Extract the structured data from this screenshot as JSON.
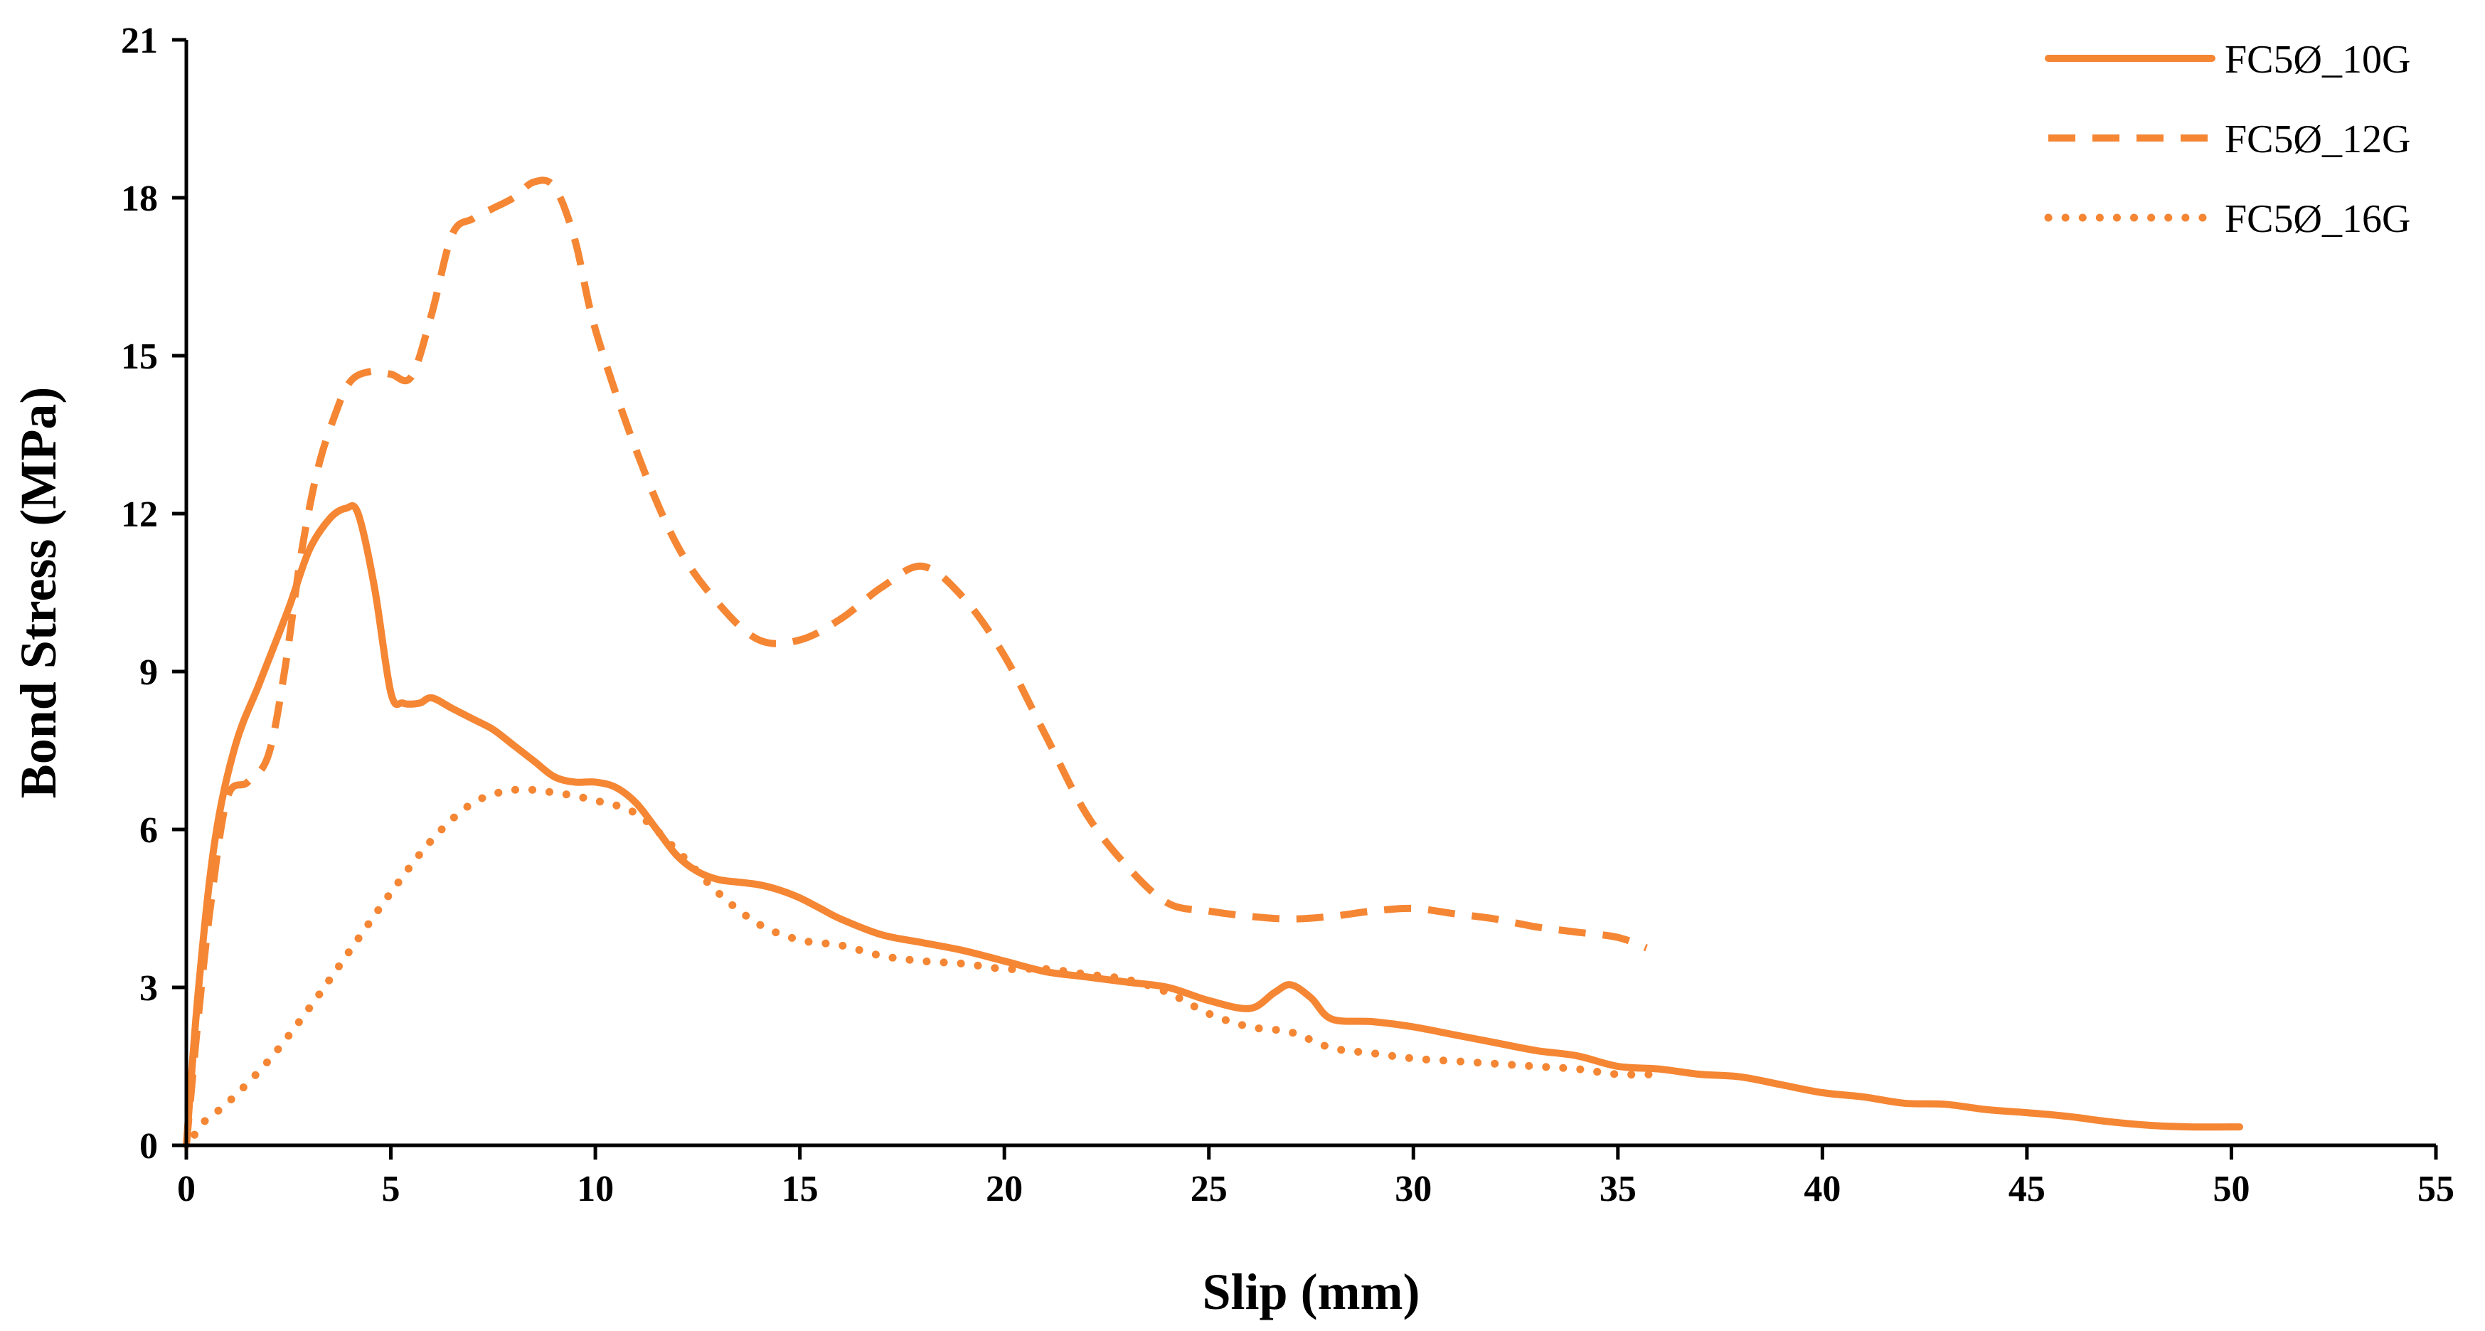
{
  "chart_data": {
    "type": "line",
    "title": "",
    "xlabel": "Slip (mm)",
    "ylabel": "Bond Stress (MPa)",
    "xlim": [
      0,
      55
    ],
    "ylim": [
      0,
      21
    ],
    "xticks": [
      0,
      5,
      10,
      15,
      20,
      25,
      30,
      35,
      40,
      45,
      50,
      55
    ],
    "yticks": [
      0,
      3,
      6,
      9,
      12,
      15,
      18,
      21
    ],
    "grid": false,
    "legend_position": "top-right",
    "series_color": "#F58634",
    "series": [
      {
        "name": "FC5Ø_10G",
        "style": "solid",
        "x": [
          0,
          0.3,
          0.7,
          1.2,
          1.8,
          2.5,
          3.0,
          3.5,
          3.9,
          4.2,
          4.6,
          5.0,
          5.3,
          5.7,
          6.0,
          6.5,
          7.0,
          7.5,
          8.0,
          8.5,
          9.0,
          9.5,
          10.0,
          10.5,
          11.0,
          11.5,
          12.0,
          12.5,
          13.0,
          13.5,
          14.0,
          14.5,
          15.0,
          15.5,
          16.0,
          17.0,
          18.0,
          19.0,
          20.0,
          21.0,
          22.0,
          23.0,
          24.0,
          25.0,
          26.0,
          26.6,
          27.0,
          27.5,
          28.0,
          29.0,
          30.0,
          31.0,
          32.0,
          33.0,
          34.0,
          35.0,
          36.0,
          37.0,
          38.0,
          39.0,
          40.0,
          41.0,
          42.0,
          43.0,
          44.0,
          45.0,
          46.0,
          47.0,
          48.0,
          49.0,
          50.2
        ],
        "y": [
          0,
          3.0,
          5.8,
          7.6,
          8.8,
          10.2,
          11.3,
          11.9,
          12.1,
          12.0,
          10.6,
          8.6,
          8.4,
          8.4,
          8.5,
          8.3,
          8.1,
          7.9,
          7.6,
          7.3,
          7.0,
          6.9,
          6.9,
          6.8,
          6.5,
          6.0,
          5.5,
          5.2,
          5.05,
          5.0,
          4.95,
          4.85,
          4.7,
          4.5,
          4.3,
          4.0,
          3.85,
          3.7,
          3.5,
          3.3,
          3.2,
          3.1,
          3.0,
          2.75,
          2.6,
          2.9,
          3.05,
          2.8,
          2.4,
          2.35,
          2.25,
          2.1,
          1.95,
          1.8,
          1.7,
          1.5,
          1.45,
          1.35,
          1.3,
          1.15,
          1.0,
          0.92,
          0.8,
          0.78,
          0.68,
          0.62,
          0.55,
          0.45,
          0.38,
          0.35,
          0.35
        ]
      },
      {
        "name": "FC5Ø_12G",
        "style": "dashed",
        "x": [
          0,
          0.3,
          0.6,
          1.0,
          1.5,
          2.0,
          2.4,
          2.8,
          3.2,
          3.6,
          4.0,
          4.5,
          5.0,
          5.5,
          6.0,
          6.5,
          7.0,
          7.5,
          8.0,
          8.5,
          9.0,
          9.5,
          10.0,
          11.0,
          12.0,
          13.0,
          14.0,
          15.0,
          16.0,
          17.0,
          18.0,
          19.0,
          20.0,
          21.0,
          22.0,
          23.0,
          24.0,
          25.0,
          26.0,
          27.0,
          28.0,
          29.0,
          30.0,
          31.0,
          32.0,
          33.0,
          34.0,
          35.0,
          35.7
        ],
        "y": [
          0,
          2.5,
          4.6,
          6.6,
          6.9,
          7.4,
          9.0,
          11.2,
          12.8,
          13.8,
          14.5,
          14.7,
          14.65,
          14.6,
          15.8,
          17.3,
          17.6,
          17.8,
          18.0,
          18.3,
          18.2,
          17.2,
          15.5,
          13.2,
          11.4,
          10.3,
          9.6,
          9.6,
          10.0,
          10.6,
          11.0,
          10.4,
          9.3,
          7.8,
          6.3,
          5.3,
          4.6,
          4.45,
          4.35,
          4.3,
          4.35,
          4.45,
          4.5,
          4.4,
          4.3,
          4.15,
          4.05,
          3.95,
          3.75
        ]
      },
      {
        "name": "FC5Ø_16G",
        "style": "dotted",
        "x": [
          0.2,
          0.5,
          1.0,
          2.0,
          3.0,
          4.0,
          5.0,
          6.0,
          7.0,
          8.0,
          9.0,
          10.0,
          11.0,
          12.0,
          13.0,
          14.0,
          15.0,
          16.0,
          17.0,
          18.0,
          19.0,
          20.0,
          21.0,
          22.0,
          23.0,
          24.0,
          25.0,
          26.0,
          27.0,
          28.0,
          29.0,
          30.0,
          31.0,
          32.0,
          33.0,
          34.0,
          35.0,
          36.0
        ],
        "y": [
          0.2,
          0.5,
          0.8,
          1.6,
          2.6,
          3.7,
          4.8,
          5.8,
          6.5,
          6.75,
          6.7,
          6.55,
          6.3,
          5.6,
          4.8,
          4.2,
          3.9,
          3.8,
          3.6,
          3.5,
          3.45,
          3.35,
          3.35,
          3.25,
          3.15,
          2.9,
          2.5,
          2.25,
          2.15,
          1.85,
          1.75,
          1.65,
          1.6,
          1.55,
          1.5,
          1.45,
          1.35,
          1.35
        ]
      }
    ]
  }
}
